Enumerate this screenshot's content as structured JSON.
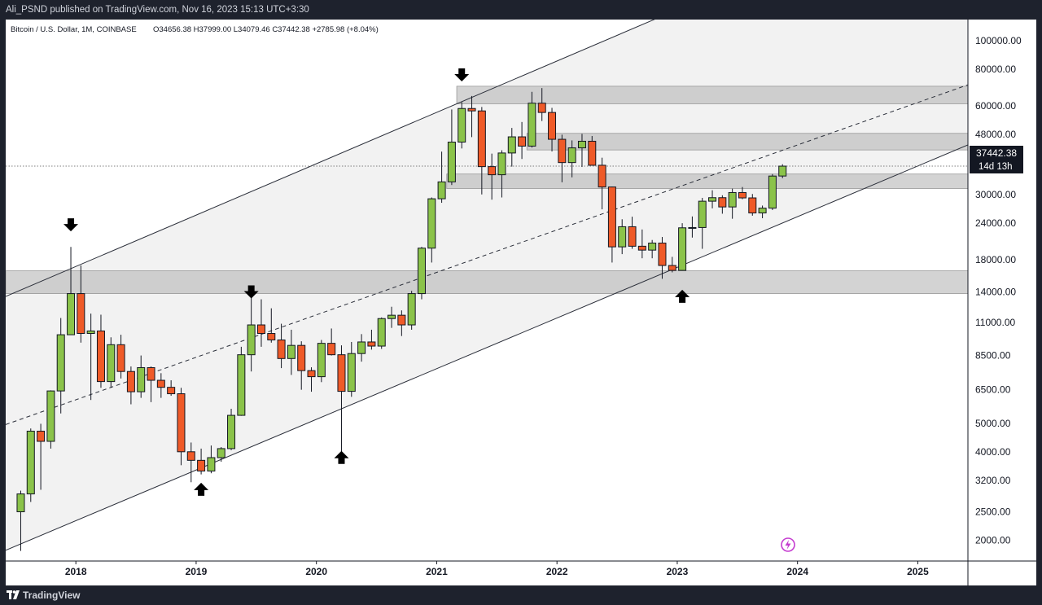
{
  "header": {
    "published_text": "Ali_PSND published on TradingView.com, Nov 16, 2023 15:13 UTC+3:30"
  },
  "footer": {
    "brand": "TradingView"
  },
  "colors": {
    "up": "#8bc34a",
    "down": "#ef5a28",
    "zone": "#b8b8b8",
    "chart_bg": "#ffffff",
    "page_bg": "#1e222d"
  },
  "icons": [
    "tradingview-logo-icon",
    "down-arrow-icon",
    "up-arrow-icon",
    "lightning-icon"
  ],
  "chart_data": {
    "type": "candlestick",
    "legend": {
      "symbol": "Bitcoin / U.S. Dollar, 1M, COINBASE",
      "ohlc": "O34656.38 H37999.00 L34079.46 C37442.38 +2785.98 (+8.04%)"
    },
    "y_scale": "log",
    "ylim": [
      1700,
      118000
    ],
    "xlim": [
      "2017-06",
      "2025-06"
    ],
    "y_ticks": [
      "100000.00",
      "80000.00",
      "60000.00",
      "48000.00",
      "30000.00",
      "24000.00",
      "18000.00",
      "14000.00",
      "11000.00",
      "8500.00",
      "6500.00",
      "5000.00",
      "4000.00",
      "3200.00",
      "2500.00",
      "2000.00"
    ],
    "x_ticks": [
      "2018",
      "2019",
      "2020",
      "2021",
      "2022",
      "2023",
      "2024",
      "2025"
    ],
    "last_price": {
      "label": "37442.38",
      "countdown": "14d 13h",
      "value": 37442.38
    },
    "candles": [
      {
        "t": "2017-07",
        "o": 2500,
        "h": 2950,
        "l": 1840,
        "c": 2875
      },
      {
        "t": "2017-08",
        "o": 2875,
        "h": 4800,
        "l": 2700,
        "c": 4700
      },
      {
        "t": "2017-09",
        "o": 4700,
        "h": 4980,
        "l": 2970,
        "c": 4340
      },
      {
        "t": "2017-10",
        "o": 4340,
        "h": 6470,
        "l": 4100,
        "c": 6440
      },
      {
        "t": "2017-11",
        "o": 6440,
        "h": 11400,
        "l": 5400,
        "c": 10000
      },
      {
        "t": "2017-12",
        "o": 10000,
        "h": 19891,
        "l": 10400,
        "c": 13800
      },
      {
        "t": "2018-01",
        "o": 13800,
        "h": 17200,
        "l": 9400,
        "c": 10100
      },
      {
        "t": "2018-02",
        "o": 10100,
        "h": 11800,
        "l": 6000,
        "c": 10300
      },
      {
        "t": "2018-03",
        "o": 10300,
        "h": 11700,
        "l": 6600,
        "c": 6930
      },
      {
        "t": "2018-04",
        "o": 6930,
        "h": 9800,
        "l": 6600,
        "c": 9250
      },
      {
        "t": "2018-05",
        "o": 9250,
        "h": 10000,
        "l": 7100,
        "c": 7500
      },
      {
        "t": "2018-06",
        "o": 7500,
        "h": 7800,
        "l": 5800,
        "c": 6400
      },
      {
        "t": "2018-07",
        "o": 6400,
        "h": 8500,
        "l": 6100,
        "c": 7730
      },
      {
        "t": "2018-08",
        "o": 7730,
        "h": 7800,
        "l": 5900,
        "c": 7000
      },
      {
        "t": "2018-09",
        "o": 7000,
        "h": 7400,
        "l": 6100,
        "c": 6625
      },
      {
        "t": "2018-10",
        "o": 6625,
        "h": 7000,
        "l": 6200,
        "c": 6300
      },
      {
        "t": "2018-11",
        "o": 6300,
        "h": 6600,
        "l": 3600,
        "c": 4000
      },
      {
        "t": "2018-12",
        "o": 4000,
        "h": 4300,
        "l": 3150,
        "c": 3740
      },
      {
        "t": "2019-01",
        "o": 3740,
        "h": 4100,
        "l": 3350,
        "c": 3440
      },
      {
        "t": "2019-02",
        "o": 3440,
        "h": 4200,
        "l": 3380,
        "c": 3820
      },
      {
        "t": "2019-03",
        "o": 3820,
        "h": 4150,
        "l": 3700,
        "c": 4100
      },
      {
        "t": "2019-04",
        "o": 4100,
        "h": 5600,
        "l": 4050,
        "c": 5320
      },
      {
        "t": "2019-05",
        "o": 5320,
        "h": 9100,
        "l": 5300,
        "c": 8550
      },
      {
        "t": "2019-06",
        "o": 8550,
        "h": 13900,
        "l": 7500,
        "c": 10800
      },
      {
        "t": "2019-07",
        "o": 10800,
        "h": 13200,
        "l": 9100,
        "c": 10100
      },
      {
        "t": "2019-08",
        "o": 10100,
        "h": 12300,
        "l": 9400,
        "c": 9600
      },
      {
        "t": "2019-09",
        "o": 9600,
        "h": 10900,
        "l": 7700,
        "c": 8300
      },
      {
        "t": "2019-10",
        "o": 8300,
        "h": 10400,
        "l": 7300,
        "c": 9200
      },
      {
        "t": "2019-11",
        "o": 9200,
        "h": 9500,
        "l": 6500,
        "c": 7550
      },
      {
        "t": "2019-12",
        "o": 7550,
        "h": 7750,
        "l": 6400,
        "c": 7200
      },
      {
        "t": "2020-01",
        "o": 7200,
        "h": 9600,
        "l": 6900,
        "c": 9350
      },
      {
        "t": "2020-02",
        "o": 9350,
        "h": 10500,
        "l": 8500,
        "c": 8550
      },
      {
        "t": "2020-03",
        "o": 8550,
        "h": 9200,
        "l": 3850,
        "c": 6420
      },
      {
        "t": "2020-04",
        "o": 6420,
        "h": 9450,
        "l": 6150,
        "c": 8630
      },
      {
        "t": "2020-05",
        "o": 8630,
        "h": 10050,
        "l": 8100,
        "c": 9450
      },
      {
        "t": "2020-06",
        "o": 9450,
        "h": 10400,
        "l": 8900,
        "c": 9150
      },
      {
        "t": "2020-07",
        "o": 9150,
        "h": 11450,
        "l": 8950,
        "c": 11350
      },
      {
        "t": "2020-08",
        "o": 11350,
        "h": 12450,
        "l": 10550,
        "c": 11650
      },
      {
        "t": "2020-09",
        "o": 11650,
        "h": 12100,
        "l": 9900,
        "c": 10800
      },
      {
        "t": "2020-10",
        "o": 10800,
        "h": 14100,
        "l": 10400,
        "c": 13800
      },
      {
        "t": "2020-11",
        "o": 13800,
        "h": 19900,
        "l": 13200,
        "c": 19700
      },
      {
        "t": "2020-12",
        "o": 19700,
        "h": 29300,
        "l": 17600,
        "c": 29000
      },
      {
        "t": "2021-01",
        "o": 29000,
        "h": 41950,
        "l": 28100,
        "c": 33100
      },
      {
        "t": "2021-02",
        "o": 33100,
        "h": 58350,
        "l": 32300,
        "c": 45200
      },
      {
        "t": "2021-03",
        "o": 45200,
        "h": 61800,
        "l": 43000,
        "c": 58800
      },
      {
        "t": "2021-04",
        "o": 58800,
        "h": 64850,
        "l": 47000,
        "c": 57700
      },
      {
        "t": "2021-05",
        "o": 57700,
        "h": 59500,
        "l": 30000,
        "c": 37300
      },
      {
        "t": "2021-06",
        "o": 37300,
        "h": 41300,
        "l": 28800,
        "c": 35000
      },
      {
        "t": "2021-07",
        "o": 35000,
        "h": 42400,
        "l": 29300,
        "c": 41500
      },
      {
        "t": "2021-08",
        "o": 41500,
        "h": 50500,
        "l": 37300,
        "c": 47100
      },
      {
        "t": "2021-09",
        "o": 47100,
        "h": 52900,
        "l": 39600,
        "c": 43800
      },
      {
        "t": "2021-10",
        "o": 43800,
        "h": 67000,
        "l": 43300,
        "c": 61300
      },
      {
        "t": "2021-11",
        "o": 61300,
        "h": 69000,
        "l": 53300,
        "c": 57000
      },
      {
        "t": "2021-12",
        "o": 57000,
        "h": 59100,
        "l": 42000,
        "c": 46200
      },
      {
        "t": "2022-01",
        "o": 46200,
        "h": 47900,
        "l": 33000,
        "c": 38500
      },
      {
        "t": "2022-02",
        "o": 38500,
        "h": 45800,
        "l": 34300,
        "c": 43200
      },
      {
        "t": "2022-03",
        "o": 43200,
        "h": 48200,
        "l": 37200,
        "c": 45500
      },
      {
        "t": "2022-04",
        "o": 45500,
        "h": 47400,
        "l": 37600,
        "c": 37700
      },
      {
        "t": "2022-05",
        "o": 37700,
        "h": 40000,
        "l": 26700,
        "c": 31800
      },
      {
        "t": "2022-06",
        "o": 31800,
        "h": 31900,
        "l": 17600,
        "c": 19900
      },
      {
        "t": "2022-07",
        "o": 19900,
        "h": 24700,
        "l": 18800,
        "c": 23300
      },
      {
        "t": "2022-08",
        "o": 23300,
        "h": 25200,
        "l": 19600,
        "c": 20000
      },
      {
        "t": "2022-09",
        "o": 20000,
        "h": 22800,
        "l": 18200,
        "c": 19400
      },
      {
        "t": "2022-10",
        "o": 19400,
        "h": 21000,
        "l": 18200,
        "c": 20500
      },
      {
        "t": "2022-11",
        "o": 20500,
        "h": 21500,
        "l": 15500,
        "c": 17200
      },
      {
        "t": "2022-12",
        "o": 17200,
        "h": 18400,
        "l": 16300,
        "c": 16550
      },
      {
        "t": "2023-01",
        "o": 16550,
        "h": 23950,
        "l": 16500,
        "c": 23100
      },
      {
        "t": "2023-02",
        "o": 23100,
        "h": 25250,
        "l": 21400,
        "c": 23150
      },
      {
        "t": "2023-03",
        "o": 23150,
        "h": 29200,
        "l": 19600,
        "c": 28450
      },
      {
        "t": "2023-04",
        "o": 28450,
        "h": 31000,
        "l": 26900,
        "c": 29250
      },
      {
        "t": "2023-05",
        "o": 29250,
        "h": 29800,
        "l": 25800,
        "c": 27200
      },
      {
        "t": "2023-06",
        "o": 27200,
        "h": 31400,
        "l": 24800,
        "c": 30450
      },
      {
        "t": "2023-07",
        "o": 30450,
        "h": 31800,
        "l": 28900,
        "c": 29200
      },
      {
        "t": "2023-08",
        "o": 29200,
        "h": 30100,
        "l": 25400,
        "c": 25950
      },
      {
        "t": "2023-09",
        "o": 25950,
        "h": 27500,
        "l": 24900,
        "c": 26950
      },
      {
        "t": "2023-10",
        "o": 26950,
        "h": 35200,
        "l": 26550,
        "c": 34650
      },
      {
        "t": "2023-11",
        "o": 34656.38,
        "h": 37999,
        "l": 34079.46,
        "c": 37442.38
      }
    ],
    "zones": [
      {
        "from": "2017-06",
        "to": "2025-06",
        "low": 13800,
        "high": 16500
      },
      {
        "from": "2021-02",
        "to": "2025-06",
        "low": 31400,
        "high": 35200
      },
      {
        "from": "2021-10",
        "to": "2025-06",
        "low": 42500,
        "high": 48400
      },
      {
        "from": "2021-03",
        "to": "2025-06",
        "low": 61000,
        "high": 70000
      }
    ],
    "channel": {
      "upper": [
        {
          "t": "2017-06",
          "p": 13500
        },
        {
          "t": "2021-03",
          "p": 61000
        }
      ],
      "lower": [
        {
          "t": "2017-06",
          "p": 1850
        },
        {
          "t": "2022-12",
          "p": 16400
        }
      ],
      "mid": [
        {
          "t": "2017-06",
          "p": 4950
        },
        {
          "t": "2020-07",
          "p": 13800
        }
      ]
    },
    "markers": [
      {
        "type": "down",
        "t": "2017-12",
        "p": 23500
      },
      {
        "type": "down",
        "t": "2019-06",
        "p": 13900
      },
      {
        "type": "down",
        "t": "2021-03",
        "p": 76000
      },
      {
        "type": "up",
        "t": "2019-01",
        "p": 3000
      },
      {
        "type": "up",
        "t": "2020-03",
        "p": 3850
      },
      {
        "type": "up",
        "t": "2023-01",
        "p": 13600
      }
    ],
    "grid": false
  }
}
